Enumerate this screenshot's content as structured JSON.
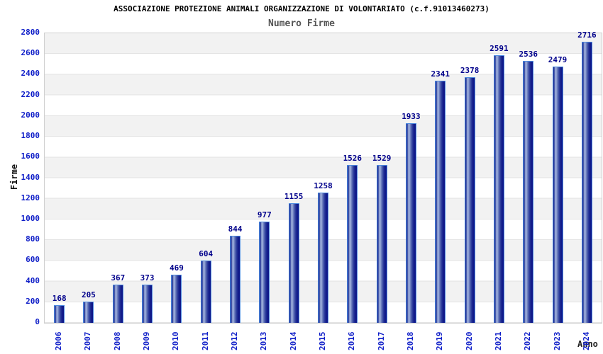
{
  "header": {
    "title": "ASSOCIAZIONE PROTEZIONE ANIMALI ORGANIZZAZIONE DI VOLONTARIATO (c.f.91013460273)",
    "subtitle": "Numero Firme"
  },
  "chart_data": {
    "type": "bar",
    "title": "ASSOCIAZIONE PROTEZIONE ANIMALI ORGANIZZAZIONE DI VOLONTARIATO (c.f.91013460273)",
    "subtitle": "Numero Firme",
    "xlabel": "Anno",
    "ylabel": "Firme",
    "categories": [
      "2006",
      "2007",
      "2008",
      "2009",
      "2010",
      "2011",
      "2012",
      "2013",
      "2014",
      "2015",
      "2016",
      "2017",
      "2018",
      "2019",
      "2020",
      "2021",
      "2022",
      "2023",
      "2024"
    ],
    "values": [
      168,
      205,
      367,
      373,
      469,
      604,
      844,
      977,
      1155,
      1258,
      1526,
      1529,
      1933,
      2341,
      2378,
      2591,
      2536,
      2479,
      2716
    ],
    "ylim": [
      0,
      2800
    ],
    "ytick_step": 200,
    "grid": true,
    "legend": "none",
    "colors": {
      "bar_dark": "#0d1487",
      "bar_highlight": "#a8b6e0",
      "bar_border": "#4d8be0",
      "tick_label": "#0f1ec8",
      "value_label": "#00008b",
      "band_gray": "#f2f2f2",
      "gridline": "#e3e3e3",
      "title": "#000000",
      "subtitle": "#555555"
    }
  }
}
